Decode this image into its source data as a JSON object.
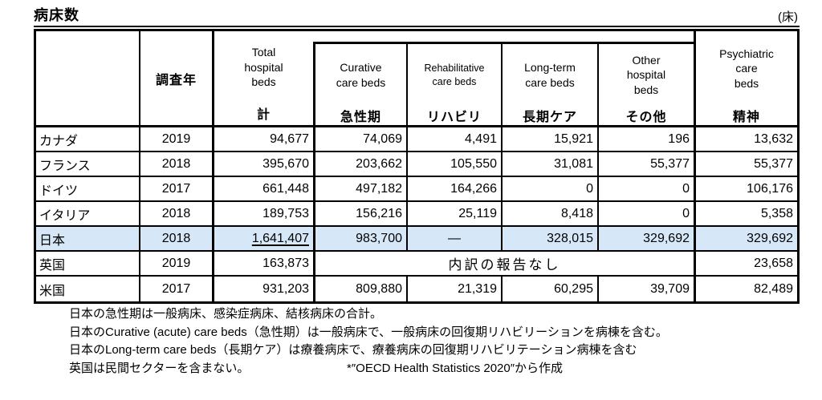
{
  "page": {
    "title": "病床数",
    "unit_label": "(床)"
  },
  "table": {
    "highlight_color": "#d6e8f7",
    "columns": [
      {
        "key": "country",
        "en": "",
        "ja": ""
      },
      {
        "key": "year",
        "en": "",
        "ja": "調査年"
      },
      {
        "key": "total",
        "en": "Total\nhospital\nbeds",
        "ja": "計"
      },
      {
        "key": "curative",
        "en": "Curative\ncare beds",
        "ja": "急性期"
      },
      {
        "key": "rehabilitative",
        "en": "Rehabilitative\ncare beds",
        "ja": "リハビリ"
      },
      {
        "key": "longterm",
        "en": "Long-term\ncare beds",
        "ja": "長期ケア"
      },
      {
        "key": "other",
        "en": "Other\nhospital\nbeds",
        "ja": "その他"
      },
      {
        "key": "psychiatric",
        "en": "Psychiatric\ncare\nbeds",
        "ja": "精神"
      }
    ],
    "rows": [
      {
        "country": "カナダ",
        "year": "2019",
        "total": "94,677",
        "curative": "74,069",
        "rehabilitative": "4,491",
        "longterm": "15,921",
        "other": "196",
        "psychiatric": "13,632"
      },
      {
        "country": "フランス",
        "year": "2018",
        "total": "395,670",
        "curative": "203,662",
        "rehabilitative": "105,550",
        "longterm": "31,081",
        "other": "55,377",
        "psychiatric": "55,377"
      },
      {
        "country": "ドイツ",
        "year": "2017",
        "total": "661,448",
        "curative": "497,182",
        "rehabilitative": "164,266",
        "longterm": "0",
        "other": "0",
        "psychiatric": "106,176"
      },
      {
        "country": "イタリア",
        "year": "2018",
        "total": "189,753",
        "curative": "156,216",
        "rehabilitative": "25,119",
        "longterm": "8,418",
        "other": "0",
        "psychiatric": "5,358"
      },
      {
        "country": "日本",
        "year": "2018",
        "total": "1,641,407",
        "curative": "983,700",
        "rehabilitative": "—",
        "longterm": "328,015",
        "other": "329,692",
        "psychiatric": "329,692",
        "highlight": true,
        "total_underlined": true
      },
      {
        "country": "英国",
        "year": "2019",
        "total": "163,873",
        "merged": "内訳の報告なし",
        "psychiatric": "23,658"
      },
      {
        "country": "米国",
        "year": "2017",
        "total": "931,203",
        "curative": "809,880",
        "rehabilitative": "21,319",
        "longterm": "60,295",
        "other": "39,709",
        "psychiatric": "82,489"
      }
    ]
  },
  "notes": {
    "line1": "日本の急性期は一般病床、感染症病床、結核病床の合計。",
    "line2": "日本のCurative (acute) care beds（急性期）は一般病床で、一般病床の回復期リハビリーションを病棟を含む。",
    "line3": "日本のLong-term care beds（長期ケア）は療養病床で、療養病床の回復期リハビリテーション病棟を含む",
    "line4_left": "英国は民間セクターを含まない。",
    "line4_right": "*″OECD Health Statistics 2020″から作成"
  }
}
